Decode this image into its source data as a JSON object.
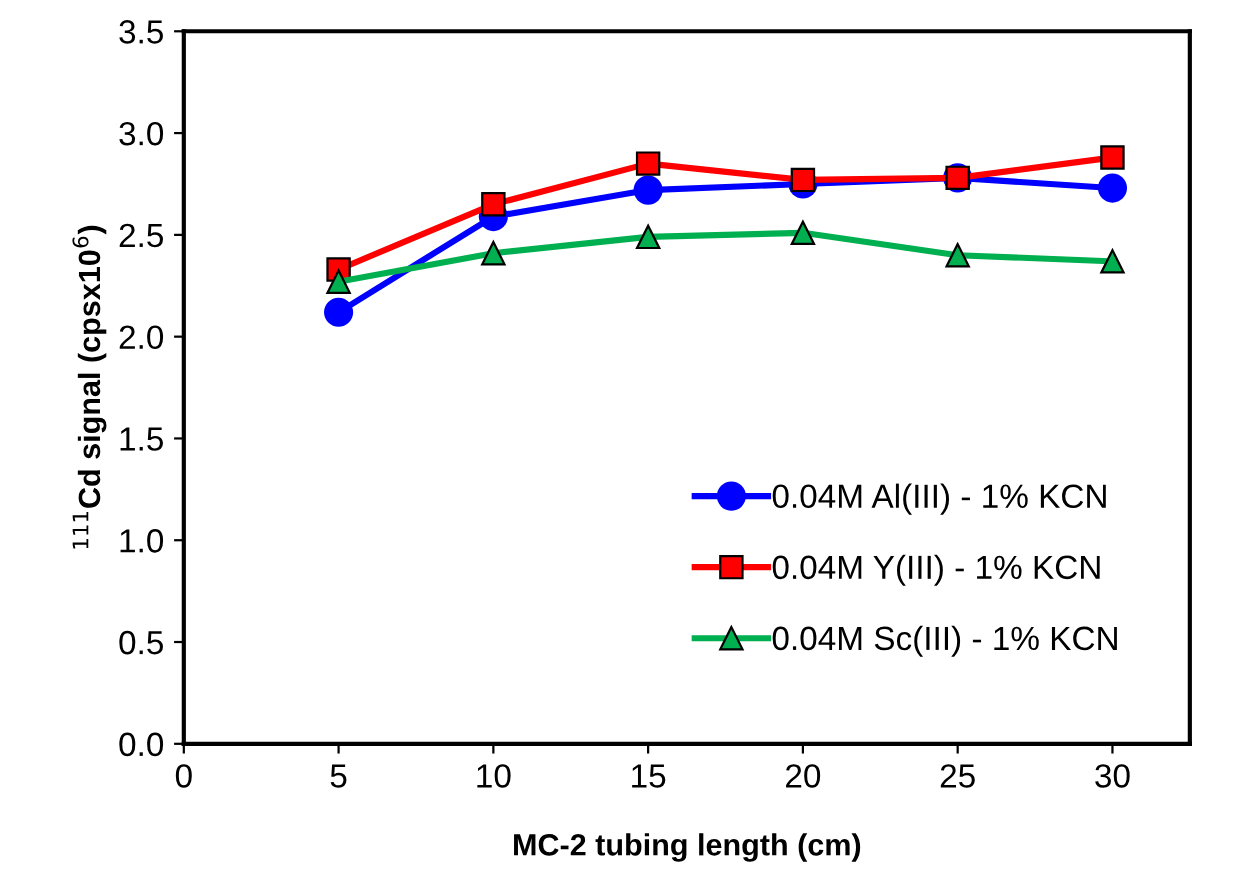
{
  "chart_data": {
    "type": "line",
    "xlabel": "MC-2 tubing length (cm)",
    "ylabel": "$^{111}$Cd signal (cpsx10$^{6}$)",
    "x": [
      5,
      10,
      15,
      20,
      25,
      30
    ],
    "series": [
      {
        "name": "0.04M Al(III) - 1% KCN",
        "color": "#0000ff",
        "marker": "circle",
        "values": [
          2.12,
          2.59,
          2.72,
          2.75,
          2.78,
          2.73
        ]
      },
      {
        "name": "0.04M Y(III) - 1% KCN",
        "color": "#ff0000",
        "marker": "square",
        "values": [
          2.33,
          2.65,
          2.85,
          2.77,
          2.78,
          2.88
        ]
      },
      {
        "name": "0.04M Sc(III) - 1% KCN",
        "color": "#00b050",
        "marker": "triangle",
        "values": [
          2.27,
          2.41,
          2.49,
          2.51,
          2.4,
          2.37
        ]
      }
    ],
    "xlim": [
      0,
      32.5
    ],
    "xticks": [
      0,
      5,
      10,
      15,
      20,
      25,
      30
    ],
    "ylim": [
      0,
      3.5
    ],
    "yticks": [
      {
        "value": 0,
        "label": "0.0"
      },
      {
        "value": 0.5,
        "label": "0.5"
      },
      {
        "value": 1,
        "label": "1.0"
      },
      {
        "value": 1.5,
        "label": "1.5"
      },
      {
        "value": 2,
        "label": "2.0"
      },
      {
        "value": 2.5,
        "label": "2.5"
      },
      {
        "value": 3,
        "label": "3.0"
      },
      {
        "value": 3.5,
        "label": "3.5"
      }
    ],
    "grid": false,
    "legend": "bottom right"
  }
}
